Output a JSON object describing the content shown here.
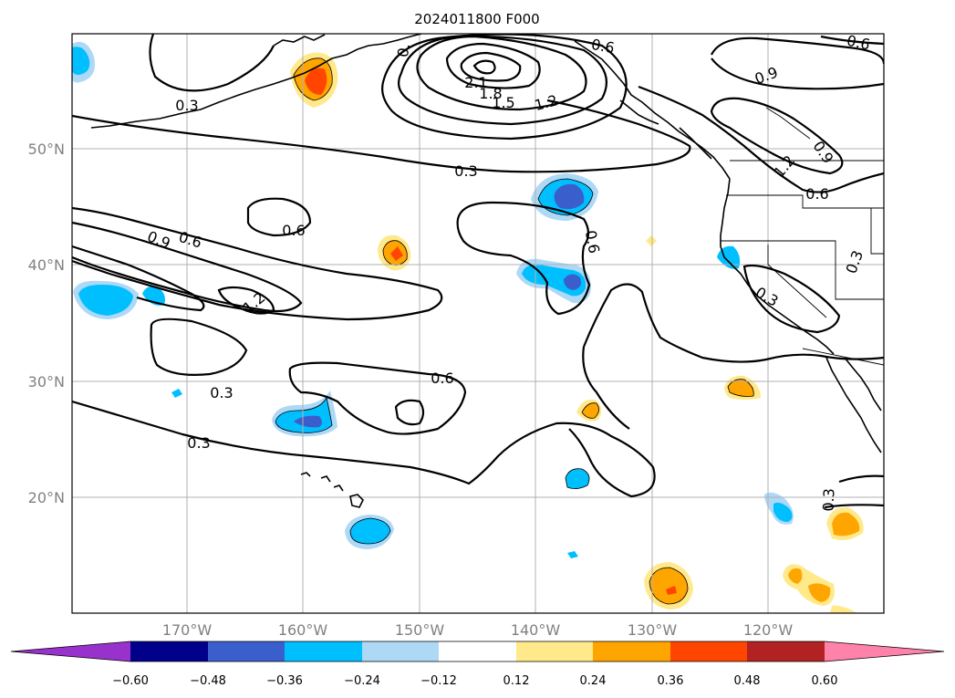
{
  "title": "2024011800 F000",
  "lat_labels": [
    "50°N",
    "40°N",
    "30°N",
    "20°N"
  ],
  "lon_labels": [
    "170°W",
    "160°W",
    "150°W",
    "140°W",
    "130°W",
    "120°W"
  ],
  "colorbar": {
    "ticks": [
      "−0.60",
      "−0.48",
      "−0.36",
      "−0.24",
      "−0.12",
      "0.12",
      "0.24",
      "0.36",
      "0.48",
      "0.60"
    ],
    "colors": [
      "#9932cc",
      "#00008b",
      "#3a5fcd",
      "#00bfff",
      "#add8f6",
      "#ffffff",
      "#ffe98a",
      "#ffa500",
      "#ff4500",
      "#b22222",
      "#ff82ab"
    ]
  },
  "contour_labels": [
    "0.3",
    "0.3",
    "0.3",
    "0.3",
    "0.3",
    "0.3",
    "0.3",
    "0.6",
    "0.6",
    "0.6",
    "0.6",
    "0.6",
    "0.6",
    "0.6",
    "0.9",
    "0.9",
    "0.9",
    "1.2",
    "1.2",
    "1.2",
    "1.5",
    "1.8",
    "2.1",
    "0."
  ]
}
